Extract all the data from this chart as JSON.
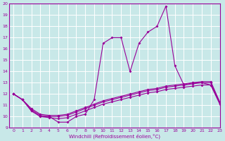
{
  "background_color": "#c8e8e8",
  "grid_color": "#ffffff",
  "line_color": "#990099",
  "xlim": [
    -0.5,
    23
  ],
  "ylim": [
    9,
    20
  ],
  "xlabel": "Windchill (Refroidissement éolien,°C)",
  "xticks": [
    0,
    1,
    2,
    3,
    4,
    5,
    6,
    7,
    8,
    9,
    10,
    11,
    12,
    13,
    14,
    15,
    16,
    17,
    18,
    19,
    20,
    21,
    22,
    23
  ],
  "yticks": [
    9,
    10,
    11,
    12,
    13,
    14,
    15,
    16,
    17,
    18,
    19,
    20
  ],
  "line1": {
    "x": [
      0,
      1,
      2,
      3,
      4,
      5,
      6,
      7,
      8,
      9,
      10,
      11,
      12,
      13,
      14,
      15,
      16,
      17,
      18,
      19,
      20,
      21,
      22,
      23
    ],
    "y": [
      12,
      11.5,
      10.5,
      10.0,
      10.0,
      9.5,
      9.5,
      10.0,
      10.2,
      11.5,
      16.5,
      17.0,
      17.0,
      14.0,
      16.5,
      17.5,
      18.0,
      19.8,
      14.5,
      12.8,
      13.0,
      13.0,
      12.8,
      11.2
    ]
  },
  "line2": {
    "x": [
      0,
      1,
      2,
      3,
      4,
      5,
      6,
      7,
      8,
      9,
      10,
      11,
      12,
      13,
      14,
      15,
      16,
      17,
      18,
      19,
      20,
      21,
      22,
      23
    ],
    "y": [
      12.0,
      11.5,
      10.7,
      10.2,
      10.1,
      10.1,
      10.2,
      10.5,
      10.8,
      11.1,
      11.4,
      11.6,
      11.8,
      12.0,
      12.2,
      12.4,
      12.5,
      12.7,
      12.8,
      12.9,
      13.0,
      13.1,
      13.1,
      11.3
    ]
  },
  "line3": {
    "x": [
      0,
      1,
      2,
      3,
      4,
      5,
      6,
      7,
      8,
      9,
      10,
      11,
      12,
      13,
      14,
      15,
      16,
      17,
      18,
      19,
      20,
      21,
      22,
      23
    ],
    "y": [
      12.0,
      11.5,
      10.6,
      10.1,
      10.0,
      10.0,
      10.1,
      10.4,
      10.7,
      11.0,
      11.3,
      11.5,
      11.7,
      11.9,
      12.1,
      12.3,
      12.4,
      12.6,
      12.7,
      12.8,
      12.9,
      13.0,
      13.0,
      11.2
    ]
  },
  "line4": {
    "x": [
      0,
      1,
      2,
      3,
      4,
      5,
      6,
      7,
      8,
      9,
      10,
      11,
      12,
      13,
      14,
      15,
      16,
      17,
      18,
      19,
      20,
      21,
      22,
      23
    ],
    "y": [
      12.0,
      11.5,
      10.5,
      10.0,
      9.9,
      9.8,
      9.9,
      10.2,
      10.5,
      10.8,
      11.1,
      11.3,
      11.5,
      11.7,
      11.9,
      12.1,
      12.2,
      12.4,
      12.5,
      12.6,
      12.7,
      12.8,
      12.8,
      11.1
    ]
  }
}
